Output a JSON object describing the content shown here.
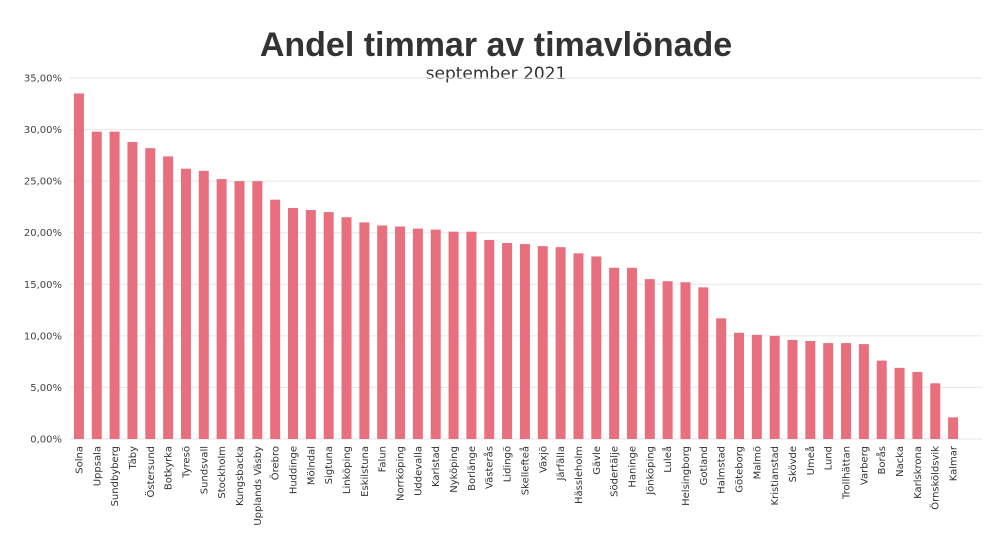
{
  "chart_data": {
    "type": "bar",
    "title": "Andel timmar av timavlönade",
    "subtitle": "september 2021",
    "xlabel": "",
    "ylabel": "",
    "ylim": [
      0,
      35
    ],
    "yticks": [
      0,
      5,
      10,
      15,
      20,
      25,
      30,
      35
    ],
    "ytick_labels": [
      "0,00%",
      "5,00%",
      "10,00%",
      "15,00%",
      "20,00%",
      "25,00%",
      "30,00%",
      "35,00%"
    ],
    "grid": true,
    "bar_color": "#e8707e",
    "categories": [
      "Solna",
      "Uppsala",
      "Sundbyberg",
      "Täby",
      "Östersund",
      "Botkyrka",
      "Tyresö",
      "Sundsvall",
      "Stockholm",
      "Kungsbacka",
      "Upplands Väsby",
      "Örebro",
      "Huddinge",
      "Mölndal",
      "Sigtuna",
      "Linköping",
      "Eskilstuna",
      "Falun",
      "Norrköping",
      "Uddevalla",
      "Karlstad",
      "Nyköping",
      "Borlänge",
      "Västerås",
      "Lidingö",
      "Skellefteå",
      "Växjö",
      "Järfälla",
      "Hässleholm",
      "Gävle",
      "Södertälje",
      "Haninge",
      "Jönköping",
      "Luleå",
      "Helsingborg",
      "Gotland",
      "Halmstad",
      "Göteborg",
      "Malmö",
      "Kristianstad",
      "Skövde",
      "Umeå",
      "Lund",
      "Trollhättan",
      "Varberg",
      "Borås",
      "Nacka",
      "Karlskrona",
      "Örnsköldsvik",
      "Kalmar"
    ],
    "values": [
      33.5,
      29.8,
      29.8,
      28.8,
      28.2,
      27.4,
      26.2,
      26.0,
      25.2,
      25.0,
      25.0,
      23.2,
      22.4,
      22.2,
      22.0,
      21.5,
      21.0,
      20.7,
      20.6,
      20.4,
      20.3,
      20.1,
      20.1,
      19.3,
      19.0,
      18.9,
      18.7,
      18.6,
      18.0,
      17.7,
      16.6,
      16.6,
      15.5,
      15.3,
      15.2,
      14.7,
      11.7,
      10.3,
      10.1,
      10.0,
      9.6,
      9.5,
      9.3,
      9.3,
      9.2,
      7.6,
      6.9,
      6.5,
      5.4,
      2.1
    ]
  }
}
